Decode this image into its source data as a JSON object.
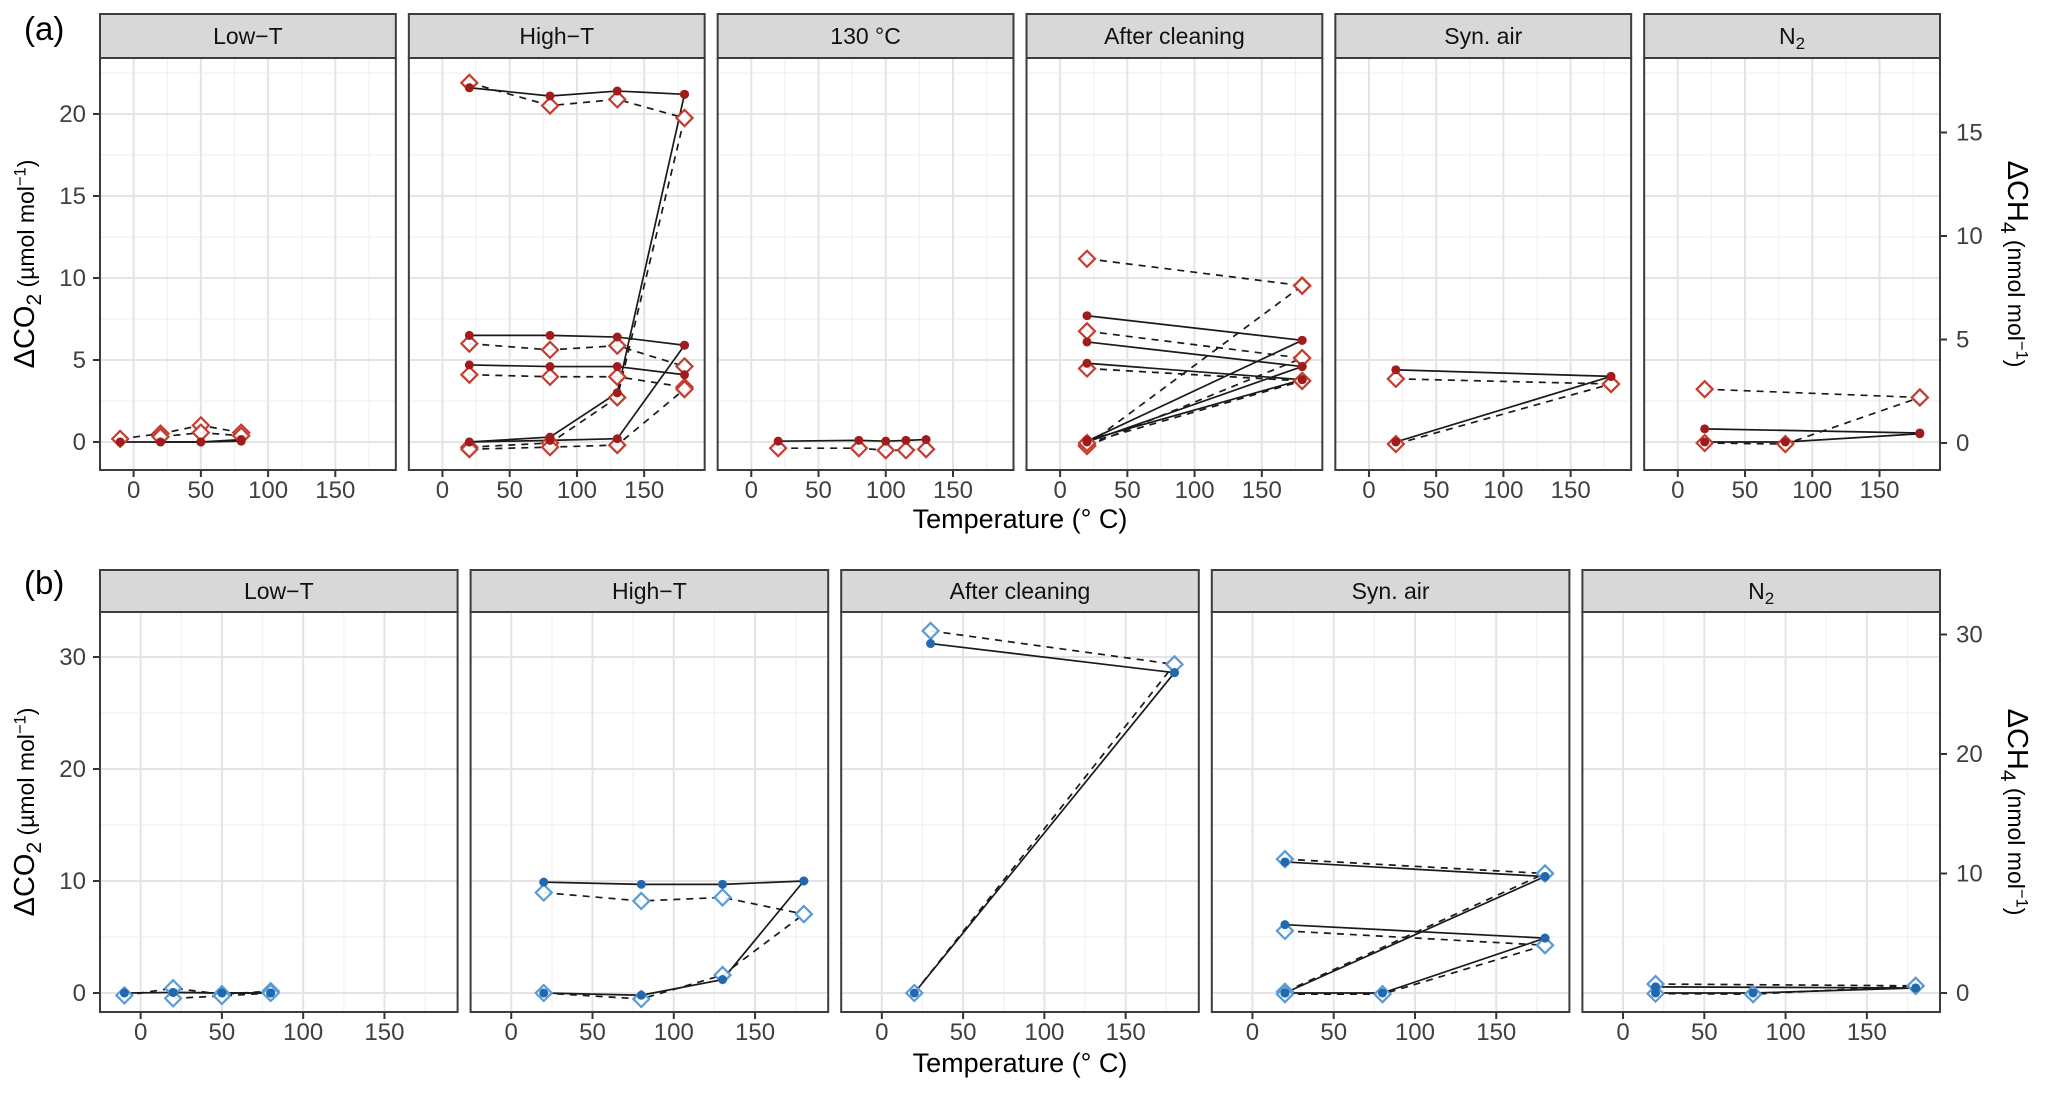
{
  "figure": {
    "panel_labels": {
      "a": "(a)",
      "b": "(b)"
    },
    "x_axis": {
      "title": "Temperature (° C)"
    },
    "axes": {
      "co2": {
        "main": "ΔCO",
        "sub": "2",
        "unit_pre": " (µmol mol",
        "sup": "−1",
        "unit_post": ")"
      },
      "ch4": {
        "main": "ΔCH",
        "sub": "4",
        "unit_pre": " (nmol mol",
        "sup": "−1",
        "unit_post": ")"
      }
    },
    "colors": {
      "strip_bg": "#D8D8D8",
      "border": "#3C3C3C",
      "grid_major": "#E4E4E4",
      "grid_minor": "#F1F1F1",
      "line": "#1A1A1A",
      "tick": "#333333",
      "tick_text": "#404040",
      "row_a_dot": "#A01B1B",
      "row_a_diamond": "#C33D30",
      "row_b_dot": "#2268AE",
      "row_b_diamond": "#5A9BD5"
    }
  },
  "chart_data": [
    {
      "row": "a",
      "type": "line",
      "xlabel": "Temperature (° C)",
      "ylabel_left": "ΔCO₂ (µmol mol⁻¹)",
      "ylabel_right": "ΔCH₄ (nmol mol⁻¹)",
      "x_domain": [
        -25,
        195
      ],
      "x_ticks": [
        0,
        50,
        100,
        150
      ],
      "x_minor": [
        25,
        75,
        125,
        175
      ],
      "co2_ticks": [
        0,
        5,
        10,
        15,
        20
      ],
      "co2_minor": [
        2.5,
        7.5,
        12.5,
        17.5,
        22.5
      ],
      "co2_range": [
        -1.7,
        23.4
      ],
      "ch4_ticks": [
        0,
        5,
        10,
        15
      ],
      "ch4_range": [
        -1.3,
        17.6
      ],
      "grid": true,
      "legend": "none",
      "series_styles": {
        "co2": {
          "line": "solid",
          "marker": "filled-circle"
        },
        "ch4": {
          "line": "dashed",
          "marker": "open-diamond"
        }
      },
      "facets": [
        {
          "title": "Low−T",
          "runs": [
            {
              "x": [
                -10,
                20,
                50,
                80
              ],
              "co2": [
                0,
                0,
                0,
                0.05
              ],
              "ch4": [
                0.2,
                0.45,
                0.85,
                0.5
              ]
            },
            {
              "x": [
                20,
                50,
                80
              ],
              "co2": [
                0,
                0,
                0.15
              ],
              "ch4": [
                0.3,
                0.5,
                0.35
              ]
            }
          ]
        },
        {
          "title": "High−T",
          "runs": [
            {
              "x": [
                20,
                80,
                130,
                180
              ],
              "co2": [
                21.6,
                21.1,
                21.4,
                21.2
              ],
              "ch4": [
                17.4,
                16.3,
                16.6,
                15.7
              ]
            },
            {
              "x": [
                20,
                80,
                130,
                180
              ],
              "co2": [
                6.5,
                6.5,
                6.4,
                5.9
              ],
              "ch4": [
                4.8,
                4.5,
                4.7,
                3.7
              ]
            },
            {
              "x": [
                20,
                80,
                130,
                180
              ],
              "co2": [
                4.7,
                4.6,
                4.6,
                4.1
              ],
              "ch4": [
                3.3,
                3.2,
                3.2,
                2.7
              ]
            },
            {
              "x": [
                20,
                80,
                130,
                180
              ],
              "co2": [
                0.0,
                0.3,
                3.0,
                21.2
              ],
              "ch4": [
                -0.2,
                0.0,
                2.2,
                15.7
              ]
            },
            {
              "x": [
                20,
                80,
                130,
                180
              ],
              "co2": [
                0.0,
                0.1,
                0.2,
                5.9
              ],
              "ch4": [
                -0.3,
                -0.2,
                -0.1,
                2.6
              ]
            }
          ]
        },
        {
          "title": "130 °C",
          "runs": [
            {
              "x": [
                20,
                80,
                100,
                115,
                130
              ],
              "co2": [
                0.05,
                0.1,
                0.05,
                0.1,
                0.15
              ],
              "ch4": [
                -0.25,
                -0.25,
                -0.35,
                -0.35,
                -0.3
              ]
            }
          ]
        },
        {
          "title": "After cleaning",
          "runs": [
            {
              "x": [
                20,
                180
              ],
              "co2": [
                7.7,
                6.2
              ],
              "ch4": [
                8.9,
                7.6
              ]
            },
            {
              "x": [
                20,
                180
              ],
              "co2": [
                6.1,
                4.6
              ],
              "ch4": [
                5.4,
                4.1
              ]
            },
            {
              "x": [
                20,
                180
              ],
              "co2": [
                4.8,
                3.8
              ],
              "ch4": [
                3.6,
                3.0
              ]
            },
            {
              "x": [
                20,
                180
              ],
              "co2": [
                0.05,
                6.2
              ],
              "ch4": [
                -0.1,
                7.6
              ]
            },
            {
              "x": [
                20,
                180
              ],
              "co2": [
                0.0,
                4.6
              ],
              "ch4": [
                -0.15,
                4.1
              ]
            },
            {
              "x": [
                20,
                180
              ],
              "co2": [
                0.1,
                3.8
              ],
              "ch4": [
                0.0,
                3.0
              ]
            }
          ]
        },
        {
          "title": "Syn. air",
          "runs": [
            {
              "x": [
                20,
                180
              ],
              "co2": [
                4.4,
                4.0
              ],
              "ch4": [
                3.1,
                2.85
              ]
            },
            {
              "x": [
                20,
                180
              ],
              "co2": [
                0.0,
                4.0
              ],
              "ch4": [
                -0.05,
                2.85
              ]
            }
          ]
        },
        {
          "title": "N",
          "title_sub": "2",
          "runs": [
            {
              "x": [
                20,
                180
              ],
              "co2": [
                0.8,
                0.55
              ],
              "ch4": [
                2.6,
                2.2
              ]
            },
            {
              "x": [
                20,
                80,
                180
              ],
              "co2": [
                0.0,
                0.0,
                0.5
              ],
              "ch4": [
                0.0,
                -0.05,
                2.2
              ]
            }
          ]
        }
      ]
    },
    {
      "row": "b",
      "type": "line",
      "xlabel": "Temperature (° C)",
      "ylabel_left": "ΔCO₂ (µmol mol⁻¹)",
      "ylabel_right": "ΔCH₄ (nmol mol⁻¹)",
      "x_domain": [
        -25,
        195
      ],
      "x_ticks": [
        0,
        50,
        100,
        150
      ],
      "x_minor": [
        25,
        75,
        125,
        175
      ],
      "co2_ticks": [
        0,
        10,
        20,
        30
      ],
      "co2_minor": [
        5,
        15,
        25
      ],
      "co2_range": [
        -1.7,
        34.0
      ],
      "ch4_ticks": [
        0,
        10,
        20,
        30
      ],
      "ch4_range": [
        -1.6,
        31.9
      ],
      "grid": true,
      "legend": "none",
      "series_styles": {
        "co2": {
          "line": "solid",
          "marker": "filled-circle"
        },
        "ch4": {
          "line": "dashed",
          "marker": "open-diamond"
        }
      },
      "facets": [
        {
          "title": "Low−T",
          "runs": [
            {
              "x": [
                -10,
                20,
                50,
                80
              ],
              "co2": [
                0,
                0.05,
                0,
                0
              ],
              "ch4": [
                -0.2,
                0.4,
                -0.1,
                0.15
              ]
            },
            {
              "x": [
                20,
                50,
                80
              ],
              "co2": [
                0.05,
                0,
                0
              ],
              "ch4": [
                -0.45,
                -0.25,
                0
              ]
            }
          ]
        },
        {
          "title": "High−T",
          "runs": [
            {
              "x": [
                20,
                80,
                130,
                180
              ],
              "co2": [
                9.9,
                9.7,
                9.7,
                10.0
              ],
              "ch4": [
                8.4,
                7.7,
                8.0,
                6.6
              ]
            },
            {
              "x": [
                20,
                80,
                130,
                180
              ],
              "co2": [
                0.0,
                -0.2,
                1.2,
                10.0
              ],
              "ch4": [
                0.0,
                -0.5,
                1.5,
                6.6
              ]
            }
          ]
        },
        {
          "title": "After cleaning",
          "runs": [
            {
              "x": [
                30,
                180
              ],
              "co2": [
                31.2,
                28.6
              ],
              "ch4": [
                30.3,
                27.5
              ]
            },
            {
              "x": [
                20,
                180
              ],
              "co2": [
                0.0,
                28.6
              ],
              "ch4": [
                0.0,
                27.5
              ]
            }
          ]
        },
        {
          "title": "Syn. air",
          "runs": [
            {
              "x": [
                20,
                180
              ],
              "co2": [
                11.7,
                10.4
              ],
              "ch4": [
                11.2,
                10.0
              ]
            },
            {
              "x": [
                20,
                180
              ],
              "co2": [
                6.1,
                4.9
              ],
              "ch4": [
                5.2,
                4.0
              ]
            },
            {
              "x": [
                20,
                180
              ],
              "co2": [
                0.0,
                10.4
              ],
              "ch4": [
                0.1,
                10.0
              ]
            },
            {
              "x": [
                20,
                80,
                180
              ],
              "co2": [
                0.0,
                0.0,
                4.9
              ],
              "ch4": [
                -0.1,
                -0.1,
                4.0
              ]
            }
          ]
        },
        {
          "title": "N",
          "title_sub": "2",
          "runs": [
            {
              "x": [
                20,
                180
              ],
              "co2": [
                0.55,
                0.45
              ],
              "ch4": [
                0.75,
                0.6
              ]
            },
            {
              "x": [
                20,
                80,
                180
              ],
              "co2": [
                0.0,
                0.0,
                0.45
              ],
              "ch4": [
                -0.05,
                -0.1,
                0.6
              ]
            }
          ]
        }
      ]
    }
  ]
}
